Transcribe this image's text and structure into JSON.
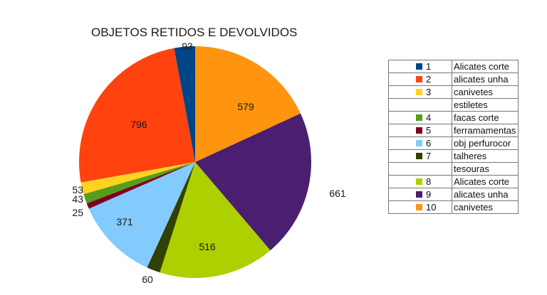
{
  "chart_data": {
    "type": "pie",
    "title": "OBJETOS RETIDOS E DEVOLVIDOS",
    "slices": [
      {
        "label": "",
        "value": 93,
        "color": "#004586"
      },
      {
        "label": "",
        "value": 579,
        "color": "#ff950e"
      },
      {
        "label": "",
        "value": 661,
        "color": "#4b1f6f"
      },
      {
        "label": "",
        "value": 516,
        "color": "#aecf00"
      },
      {
        "label": "",
        "value": 60,
        "color": "#314004"
      },
      {
        "label": "",
        "value": 371,
        "color": "#83caff"
      },
      {
        "label": "",
        "value": 25,
        "color": "#7e0021"
      },
      {
        "label": "",
        "value": 43,
        "color": "#579d1c"
      },
      {
        "label": "",
        "value": 53,
        "color": "#ffd320"
      },
      {
        "label": "",
        "value": 796,
        "color": "#ff420e"
      }
    ],
    "legend": {
      "placement": "right",
      "rows": [
        {
          "key": "1",
          "label": "Alicates corte",
          "color": "#004586"
        },
        {
          "key": "2",
          "label": "alicates unha",
          "color": "#ff420e"
        },
        {
          "key": "3",
          "label": "canivetes",
          "color": "#ffd320"
        },
        {
          "key": "",
          "label": "estiletes",
          "color": ""
        },
        {
          "key": "4",
          "label": "facas corte",
          "color": "#579d1c"
        },
        {
          "key": "5",
          "label": "ferramamentas",
          "color": "#7e0021"
        },
        {
          "key": "6",
          "label": "obj perfurocor",
          "color": "#83caff"
        },
        {
          "key": "7",
          "label": "talheres",
          "color": "#314004"
        },
        {
          "key": "",
          "label": "tesouras",
          "color": ""
        },
        {
          "key": "8",
          "label": "Alicates corte",
          "color": "#aecf00"
        },
        {
          "key": "9",
          "label": "alicates unha",
          "color": "#4b1f6f"
        },
        {
          "key": "10",
          "label": "canivetes",
          "color": "#ff950e"
        }
      ]
    }
  }
}
